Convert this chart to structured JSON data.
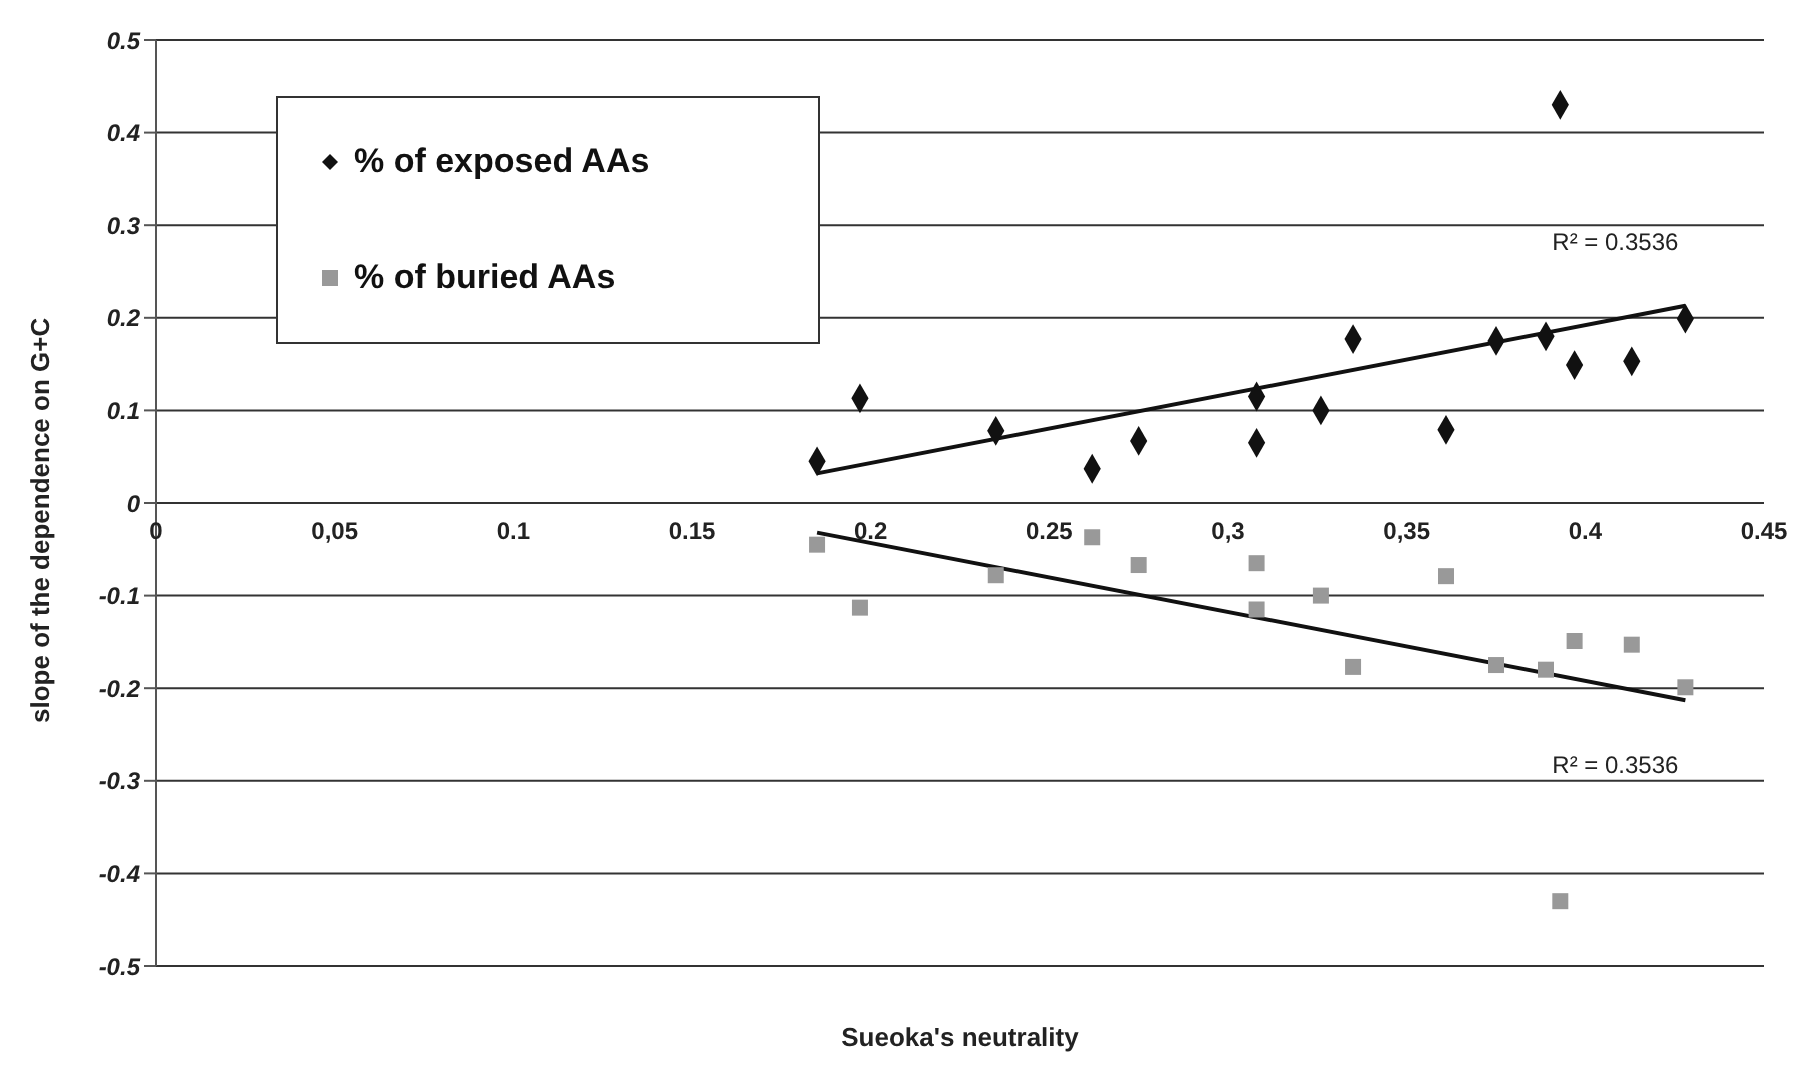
{
  "chart_data": {
    "type": "scatter",
    "xlabel": "Sueoka's neutrality",
    "ylabel": "slope of the dependence on G+C",
    "xlim": [
      0,
      0.45
    ],
    "xticks": [
      0,
      {
        "value": 0.05,
        "label": "0,05"
      },
      0.1,
      0.15,
      0.2,
      0.25,
      {
        "value": 0.3,
        "label": "0,3"
      },
      {
        "value": 0.35,
        "label": "0,35"
      },
      0.4,
      0.45
    ],
    "ylim": [
      -0.5,
      0.5
    ],
    "yticks": [
      -0.5,
      -0.4,
      -0.3,
      -0.2,
      -0.1,
      0,
      0.1,
      0.2,
      0.3,
      0.4,
      0.5
    ],
    "grid": "y",
    "legend": "top left",
    "series": [
      {
        "name": "% of exposed AAs",
        "marker": "diamond",
        "color": "#111111",
        "x": [
          0.185,
          0.197,
          0.235,
          0.262,
          0.275,
          0.308,
          0.308,
          0.326,
          0.335,
          0.361,
          0.375,
          0.389,
          0.393,
          0.397,
          0.413,
          0.428
        ],
        "values": [
          0.045,
          0.113,
          0.078,
          0.037,
          0.067,
          0.115,
          0.065,
          0.1,
          0.177,
          0.079,
          0.175,
          0.18,
          0.43,
          0.149,
          0.153,
          0.199
        ]
      },
      {
        "name": "% of buried AAs",
        "marker": "square",
        "color": "#999999",
        "x": [
          0.185,
          0.197,
          0.235,
          0.262,
          0.275,
          0.308,
          0.308,
          0.326,
          0.335,
          0.361,
          0.375,
          0.389,
          0.393,
          0.397,
          0.413,
          0.428
        ],
        "values": [
          -0.045,
          -0.113,
          -0.078,
          -0.037,
          -0.067,
          -0.115,
          -0.065,
          -0.1,
          -0.177,
          -0.079,
          -0.175,
          -0.18,
          -0.43,
          -0.149,
          -0.153,
          -0.199
        ]
      },
      {
        "type": "line",
        "marker": "none",
        "color": "#111111",
        "x": [
          0.185,
          0.428
        ],
        "values": [
          0.032,
          0.213
        ]
      },
      {
        "type": "line",
        "marker": "none",
        "color": "#111111",
        "x": [
          0.185,
          0.428
        ],
        "values": [
          -0.032,
          -0.213
        ]
      }
    ],
    "annotations": [
      "R² = 0.3536",
      "R² = 0.3536"
    ]
  }
}
